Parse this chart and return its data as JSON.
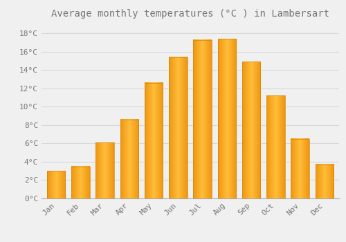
{
  "title": "Average monthly temperatures (°C ) in Lambersart",
  "months": [
    "Jan",
    "Feb",
    "Mar",
    "Apr",
    "May",
    "Jun",
    "Jul",
    "Aug",
    "Sep",
    "Oct",
    "Nov",
    "Dec"
  ],
  "values": [
    3.0,
    3.5,
    6.1,
    8.6,
    12.6,
    15.4,
    17.3,
    17.4,
    14.9,
    11.2,
    6.5,
    3.7
  ],
  "bar_color_center": "#FFB733",
  "bar_color_edge": "#E8920A",
  "background_color": "#F0F0F0",
  "grid_color": "#D8D8D8",
  "text_color": "#777777",
  "ylim": [
    0,
    19
  ],
  "yticks": [
    0,
    2,
    4,
    6,
    8,
    10,
    12,
    14,
    16,
    18
  ],
  "title_fontsize": 10,
  "tick_fontsize": 8,
  "bar_width": 0.75
}
